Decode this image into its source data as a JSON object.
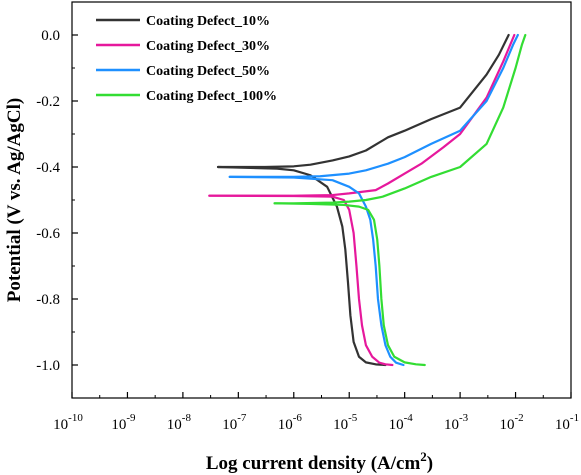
{
  "chart_data": {
    "type": "line",
    "title": "",
    "xlabel": "Log current density (A/cm",
    "xlabel_superscript": "2",
    "xlabel_suffix": ")",
    "ylabel": "Potential (V vs. Ag/AgCl)",
    "x_scale": "log",
    "x_range": [
      1e-10,
      0.1
    ],
    "y_range": [
      -1.1,
      0.1
    ],
    "x_ticks": [
      {
        "value": 1e-10,
        "base": "10",
        "exp": "-10"
      },
      {
        "value": 1e-09,
        "base": "10",
        "exp": "-9"
      },
      {
        "value": 1e-08,
        "base": "10",
        "exp": "-8"
      },
      {
        "value": 1e-07,
        "base": "10",
        "exp": "-7"
      },
      {
        "value": 1e-06,
        "base": "10",
        "exp": "-6"
      },
      {
        "value": 1e-05,
        "base": "10",
        "exp": "-5"
      },
      {
        "value": 0.0001,
        "base": "10",
        "exp": "-4"
      },
      {
        "value": 0.001,
        "base": "10",
        "exp": "-3"
      },
      {
        "value": 0.01,
        "base": "10",
        "exp": "-2"
      },
      {
        "value": 0.1,
        "base": "10",
        "exp": "-1"
      }
    ],
    "y_ticks": [
      {
        "value": 0.0,
        "label": "0.0"
      },
      {
        "value": -0.2,
        "label": "-0.2"
      },
      {
        "value": -0.4,
        "label": "-0.4"
      },
      {
        "value": -0.6,
        "label": "-0.6"
      },
      {
        "value": -0.8,
        "label": "-0.8"
      },
      {
        "value": -1.0,
        "label": "-1.0"
      }
    ],
    "grid": false,
    "legend_position": "top-left",
    "series": [
      {
        "name": "Coating Defect_10%",
        "color": "#333333",
        "points": [
          [
            4.3e-08,
            -0.4
          ],
          [
            1e-07,
            -0.4
          ],
          [
            3e-07,
            -0.4
          ],
          [
            1e-06,
            -0.398
          ],
          [
            2e-06,
            -0.393
          ],
          [
            5e-06,
            -0.38
          ],
          [
            1e-05,
            -0.368
          ],
          [
            2e-05,
            -0.35
          ],
          [
            5e-05,
            -0.31
          ],
          [
            0.0001,
            -0.29
          ],
          [
            0.0003,
            -0.255
          ],
          [
            0.001,
            -0.22
          ],
          [
            0.003,
            -0.12
          ],
          [
            0.005,
            -0.06
          ],
          [
            0.0075,
            0.0
          ]
        ],
        "cathodic": [
          [
            4.3e-08,
            -0.4
          ],
          [
            5e-07,
            -0.405
          ],
          [
            1e-06,
            -0.41
          ],
          [
            2e-06,
            -0.425
          ],
          [
            4e-06,
            -0.46
          ],
          [
            6e-06,
            -0.52
          ],
          [
            7.5e-06,
            -0.58
          ],
          [
            8.5e-06,
            -0.65
          ],
          [
            9.5e-06,
            -0.75
          ],
          [
            1.05e-05,
            -0.85
          ],
          [
            1.2e-05,
            -0.93
          ],
          [
            1.5e-05,
            -0.975
          ],
          [
            2e-05,
            -0.992
          ],
          [
            3e-05,
            -0.998
          ],
          [
            4.5e-05,
            -1.0
          ]
        ]
      },
      {
        "name": "Coating Defect_30%",
        "color": "#e6189c",
        "points": [
          [
            3e-08,
            -0.487
          ],
          [
            1e-07,
            -0.487
          ],
          [
            1e-06,
            -0.487
          ],
          [
            5e-06,
            -0.485
          ],
          [
            1e-05,
            -0.48
          ],
          [
            3e-05,
            -0.47
          ],
          [
            5e-05,
            -0.45
          ],
          [
            0.0001,
            -0.42
          ],
          [
            0.0002,
            -0.39
          ],
          [
            0.0005,
            -0.34
          ],
          [
            0.001,
            -0.3
          ],
          [
            0.003,
            -0.19
          ],
          [
            0.006,
            -0.08
          ],
          [
            0.0095,
            0.0
          ]
        ],
        "cathodic": [
          [
            3e-08,
            -0.487
          ],
          [
            1e-06,
            -0.488
          ],
          [
            5e-06,
            -0.49
          ],
          [
            8e-06,
            -0.5
          ],
          [
            1e-05,
            -0.53
          ],
          [
            1.2e-05,
            -0.6
          ],
          [
            1.35e-05,
            -0.7
          ],
          [
            1.5e-05,
            -0.8
          ],
          [
            1.7e-05,
            -0.88
          ],
          [
            2e-05,
            -0.94
          ],
          [
            2.6e-05,
            -0.975
          ],
          [
            3.5e-05,
            -0.993
          ],
          [
            4.5e-05,
            -0.998
          ],
          [
            6e-05,
            -1.0
          ]
        ]
      },
      {
        "name": "Coating Defect_50%",
        "color": "#1e90ff",
        "points": [
          [
            7e-08,
            -0.43
          ],
          [
            3e-07,
            -0.43
          ],
          [
            1e-06,
            -0.43
          ],
          [
            3e-06,
            -0.428
          ],
          [
            1e-05,
            -0.42
          ],
          [
            2e-05,
            -0.41
          ],
          [
            5e-05,
            -0.39
          ],
          [
            0.0001,
            -0.37
          ],
          [
            0.0003,
            -0.33
          ],
          [
            0.001,
            -0.29
          ],
          [
            0.003,
            -0.2
          ],
          [
            0.006,
            -0.1
          ],
          [
            0.009,
            -0.03
          ],
          [
            0.011,
            0.0
          ]
        ],
        "cathodic": [
          [
            7e-08,
            -0.43
          ],
          [
            1e-06,
            -0.432
          ],
          [
            5e-06,
            -0.44
          ],
          [
            1e-05,
            -0.46
          ],
          [
            1.5e-05,
            -0.48
          ],
          [
            2e-05,
            -0.52
          ],
          [
            2.4e-05,
            -0.56
          ],
          [
            2.7e-05,
            -0.62
          ],
          [
            3e-05,
            -0.7
          ],
          [
            3.3e-05,
            -0.8
          ],
          [
            3.8e-05,
            -0.88
          ],
          [
            4.5e-05,
            -0.94
          ],
          [
            5.5e-05,
            -0.975
          ],
          [
            7e-05,
            -0.993
          ],
          [
            9.5e-05,
            -1.0
          ]
        ]
      },
      {
        "name": "Coating Defect_100%",
        "color": "#33dd33",
        "points": [
          [
            4.5e-07,
            -0.51
          ],
          [
            1e-06,
            -0.51
          ],
          [
            5e-06,
            -0.508
          ],
          [
            1e-05,
            -0.505
          ],
          [
            2e-05,
            -0.5
          ],
          [
            4e-05,
            -0.49
          ],
          [
            0.0001,
            -0.465
          ],
          [
            0.0003,
            -0.43
          ],
          [
            0.001,
            -0.4
          ],
          [
            0.003,
            -0.33
          ],
          [
            0.006,
            -0.22
          ],
          [
            0.01,
            -0.1
          ],
          [
            0.013,
            -0.03
          ],
          [
            0.015,
            0.0
          ]
        ],
        "cathodic": [
          [
            4.5e-07,
            -0.51
          ],
          [
            2e-06,
            -0.512
          ],
          [
            8e-06,
            -0.515
          ],
          [
            1.5e-05,
            -0.52
          ],
          [
            2.2e-05,
            -0.53
          ],
          [
            2.8e-05,
            -0.56
          ],
          [
            3.2e-05,
            -0.62
          ],
          [
            3.5e-05,
            -0.7
          ],
          [
            3.8e-05,
            -0.8
          ],
          [
            4.2e-05,
            -0.88
          ],
          [
            5e-05,
            -0.94
          ],
          [
            6.5e-05,
            -0.975
          ],
          [
            0.0001,
            -0.992
          ],
          [
            0.00016,
            -0.998
          ],
          [
            0.00023,
            -1.0
          ]
        ]
      }
    ]
  }
}
